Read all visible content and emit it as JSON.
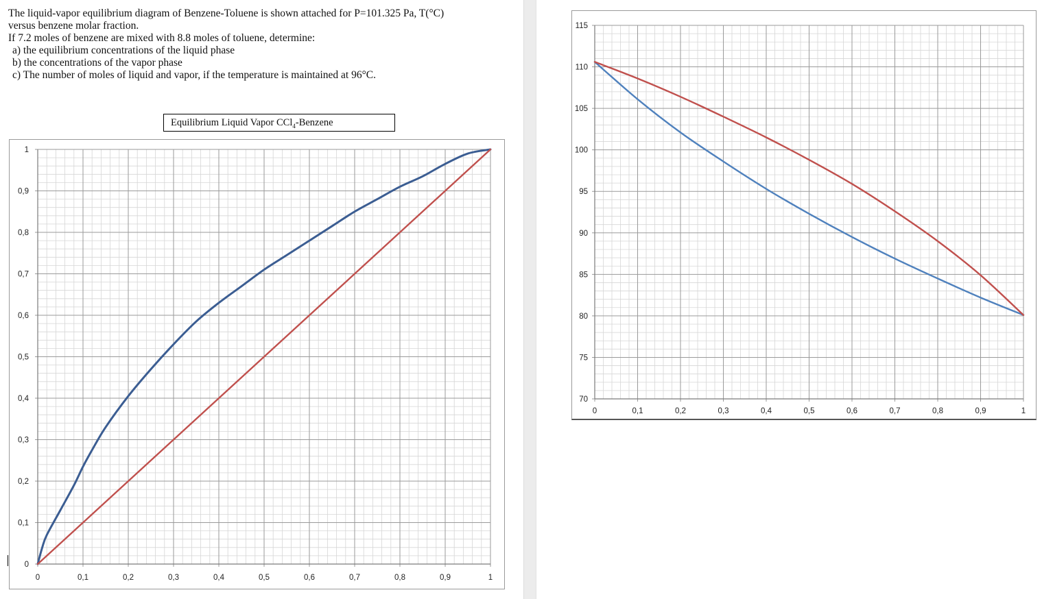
{
  "problem": {
    "line1": "The liquid-vapor equilibrium diagram of Benzene-Toluene is shown attached for P=101.325 Pa, T(°C)",
    "line2": "versus benzene molar fraction.",
    "line3": "If 7.2 moles of benzene are mixed with 8.8 moles of toluene, determine:",
    "item_a": "a) the equilibrium concentrations of the liquid phase",
    "item_b": "b) the concentrations of the vapor phase",
    "item_c": "c) The number of moles of liquid and vapor, if the temperature is maintained at 96°C."
  },
  "chart_data": [
    {
      "type": "line",
      "title_prefix": "Equilibrium Liquid Vapor CCl",
      "title_subscript": "4",
      "title_suffix": "-Benzene",
      "xlim": [
        0,
        1
      ],
      "ylim": [
        0,
        1
      ],
      "x_ticks": [
        "0",
        "0,1",
        "0,2",
        "0,3",
        "0,4",
        "0,5",
        "0,6",
        "0,7",
        "0,8",
        "0,9",
        "1"
      ],
      "y_ticks": [
        "0",
        "0,1",
        "0,2",
        "0,3",
        "0,4",
        "0,5",
        "0,6",
        "0,7",
        "0,8",
        "0,9",
        "1"
      ],
      "grid": true,
      "series": [
        {
          "color": "#3b5d92",
          "x": [
            0,
            0.01,
            0.02,
            0.05,
            0.08,
            0.1,
            0.12,
            0.15,
            0.2,
            0.25,
            0.3,
            0.35,
            0.4,
            0.45,
            0.5,
            0.55,
            0.6,
            0.65,
            0.7,
            0.75,
            0.8,
            0.85,
            0.9,
            0.95,
            1
          ],
          "y": [
            0,
            0.04,
            0.07,
            0.13,
            0.19,
            0.235,
            0.275,
            0.33,
            0.405,
            0.47,
            0.53,
            0.585,
            0.63,
            0.67,
            0.71,
            0.745,
            0.78,
            0.815,
            0.85,
            0.88,
            0.91,
            0.935,
            0.965,
            0.99,
            1.0
          ]
        },
        {
          "color": "#c0504d",
          "x": [
            0,
            1
          ],
          "y": [
            0,
            1
          ]
        }
      ]
    },
    {
      "type": "line",
      "xlim": [
        0,
        1
      ],
      "ylim": [
        70,
        115
      ],
      "x_ticks": [
        "0",
        "0,1",
        "0,2",
        "0,3",
        "0,4",
        "0,5",
        "0,6",
        "0,7",
        "0,8",
        "0,9",
        "1"
      ],
      "y_ticks": [
        "70",
        "75",
        "80",
        "85",
        "90",
        "95",
        "100",
        "105",
        "110",
        "115"
      ],
      "grid": true,
      "series": [
        {
          "color": "#4f81bd",
          "x": [
            0,
            0.1,
            0.2,
            0.3,
            0.4,
            0.5,
            0.6,
            0.7,
            0.8,
            0.9,
            1
          ],
          "y": [
            110.6,
            106.1,
            102.1,
            98.6,
            95.3,
            92.3,
            89.5,
            86.9,
            84.5,
            82.2,
            80.1
          ]
        },
        {
          "color": "#c0504d",
          "x": [
            0,
            0.1,
            0.2,
            0.3,
            0.4,
            0.5,
            0.6,
            0.7,
            0.8,
            0.9,
            1
          ],
          "y": [
            110.6,
            108.6,
            106.4,
            104.0,
            101.5,
            98.8,
            95.9,
            92.6,
            89.0,
            84.9,
            80.1
          ]
        }
      ]
    }
  ]
}
